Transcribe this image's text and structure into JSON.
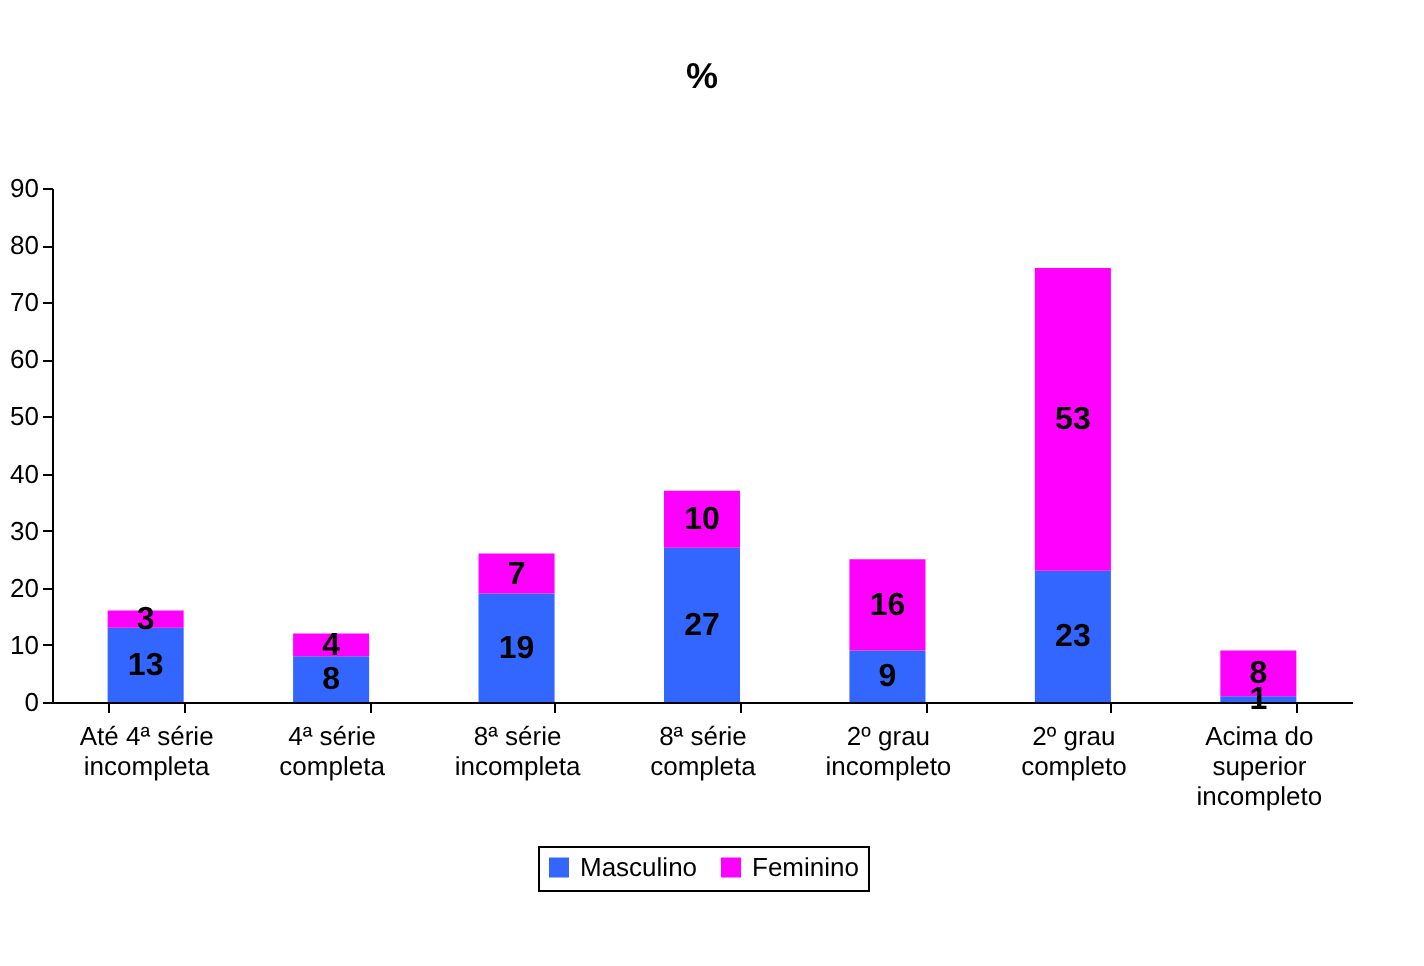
{
  "chart_data": {
    "type": "bar",
    "title": "%",
    "stacked": true,
    "data_labels": true,
    "legend": "bottom",
    "grid": false,
    "categories": [
      "Até 4ª série incompleta",
      "4ª série completa",
      "8ª série incompleta",
      "8ª série completa",
      "2º grau incompleto",
      "2º grau completo",
      "Acima do superior incompleto"
    ],
    "ylim": [
      0,
      90
    ],
    "yticks": [
      0,
      10,
      20,
      30,
      40,
      50,
      60,
      70,
      80,
      90
    ],
    "series": [
      {
        "name": "Masculino",
        "color": "#3366ff",
        "values": [
          13,
          8,
          19,
          27,
          9,
          23,
          1
        ]
      },
      {
        "name": "Feminino",
        "color": "#ff00ff",
        "values": [
          3,
          4,
          7,
          10,
          16,
          53,
          8
        ]
      }
    ]
  }
}
